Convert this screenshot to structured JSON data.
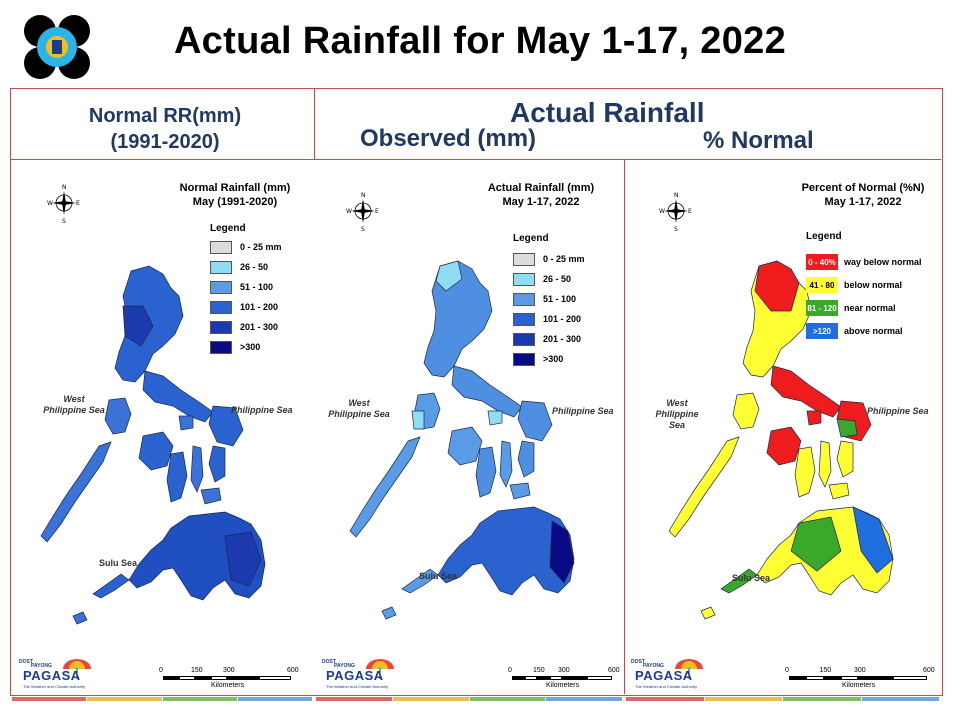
{
  "title": "Actual Rainfall for May 1-17, 2022",
  "headers": {
    "normal_line1": "Normal RR(mm)",
    "normal_line2": "(1991-2020)",
    "actual": "Actual Rainfall",
    "observed": "Observed (mm)",
    "percent": "% Normal"
  },
  "panels": [
    {
      "title_line1": "Normal Rainfall (mm)",
      "title_line2": "May (1991-2020)",
      "legend_title": "Legend",
      "legend": [
        {
          "label": "0 - 25 mm",
          "color": "#dcdcdc"
        },
        {
          "label": "26 - 50",
          "color": "#8fdcf5"
        },
        {
          "label": "51 - 100",
          "color": "#5a9be6"
        },
        {
          "label": "101 - 200",
          "color": "#2a62cf"
        },
        {
          "label": "201 - 300",
          "color": "#1a3aad"
        },
        {
          "label": ">300",
          "color": "#0a0a85"
        }
      ],
      "sea_west": "West\nPhilippine Sea",
      "sea_east": "Philippine Sea",
      "sea_sulu": "Sulu Sea"
    },
    {
      "title_line1": "Actual Rainfall (mm)",
      "title_line2": "May 1-17, 2022",
      "legend_title": "Legend",
      "legend": [
        {
          "label": "0 - 25 mm",
          "color": "#dcdcdc"
        },
        {
          "label": "26 - 50",
          "color": "#8fdcf5"
        },
        {
          "label": "51 - 100",
          "color": "#5a9be6"
        },
        {
          "label": "101 - 200",
          "color": "#2a62cf"
        },
        {
          "label": "201 - 300",
          "color": "#1a3aad"
        },
        {
          "label": ">300",
          "color": "#0a0a85"
        }
      ],
      "sea_west": "West\nPhilippine Sea",
      "sea_east": "Philippine Sea",
      "sea_sulu": "Sulu Sea"
    },
    {
      "title_line1": "Percent of Normal (%N)",
      "title_line2": "May 1-17, 2022",
      "legend_title": "Legend",
      "legend": [
        {
          "range": "0 - 40%",
          "label": "way below normal",
          "color": "#ee1c1c",
          "text_color": "#ffffff"
        },
        {
          "range": "41 - 80",
          "label": "below normal",
          "color": "#ffff33",
          "text_color": "#000000"
        },
        {
          "range": "81 - 120",
          "label": "near normal",
          "color": "#3aa82a",
          "text_color": "#ffffff"
        },
        {
          "range": ">120",
          "label": "above normal",
          "color": "#1f6fe0",
          "text_color": "#ffffff"
        }
      ],
      "sea_west": "West\nPhilippine Sea",
      "sea_east": "Philippine Sea",
      "sea_sulu": "Sulu Sea"
    }
  ],
  "scale": {
    "ticks": [
      "0",
      "150",
      "300",
      "600"
    ],
    "unit": "Kilometers"
  },
  "compass": {
    "n": "N",
    "s": "S",
    "e": "E",
    "w": "W"
  },
  "branding": {
    "agency": "PAGASA",
    "top_text": "DOST",
    "mid_text": "PAYONG",
    "tagline": "The Weather and Climate Authority"
  },
  "colors": {
    "frame": "#c0504d",
    "header_text": "#1f3864",
    "strip": [
      "#e06666",
      "#e8c14a",
      "#7fbf5f",
      "#6fa8dc"
    ]
  }
}
